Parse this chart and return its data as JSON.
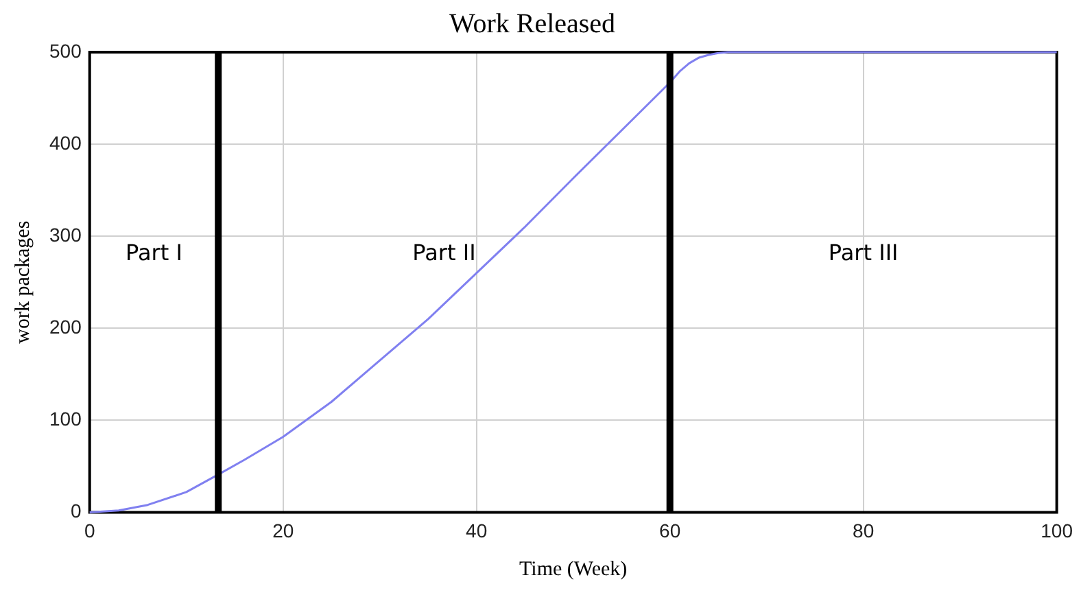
{
  "chart_data": {
    "type": "line",
    "title": "Work Released",
    "xlabel": "Time (Week)",
    "ylabel": "work packages",
    "x": [
      0,
      3,
      6,
      10,
      13.3,
      16,
      20,
      25,
      30,
      35,
      40,
      45,
      50,
      55,
      60,
      61,
      62,
      63,
      64,
      65,
      66,
      70,
      80,
      90,
      100
    ],
    "series": [
      {
        "color": "#8080f0",
        "values": [
          0,
          2,
          8,
          22,
          41,
          57,
          82,
          120,
          165,
          210,
          260,
          310,
          363,
          415,
          467,
          479,
          488,
          494,
          497,
          499,
          500,
          500,
          500,
          500,
          500
        ]
      }
    ],
    "xlim": [
      0,
      100
    ],
    "xticks": [
      0,
      20,
      40,
      60,
      80,
      100
    ],
    "ylim": [
      0,
      500
    ],
    "yticks": [
      0,
      100,
      200,
      300,
      400,
      500
    ],
    "grid": true,
    "legend": false,
    "marker": "none",
    "line_style": "solid",
    "ref_lines": [
      {
        "axis": "x",
        "value": 13.3,
        "color": "#000000"
      },
      {
        "axis": "x",
        "value": 60,
        "color": "#000000"
      }
    ],
    "annotations": [
      "Part I",
      "Part II",
      "Part III"
    ]
  }
}
